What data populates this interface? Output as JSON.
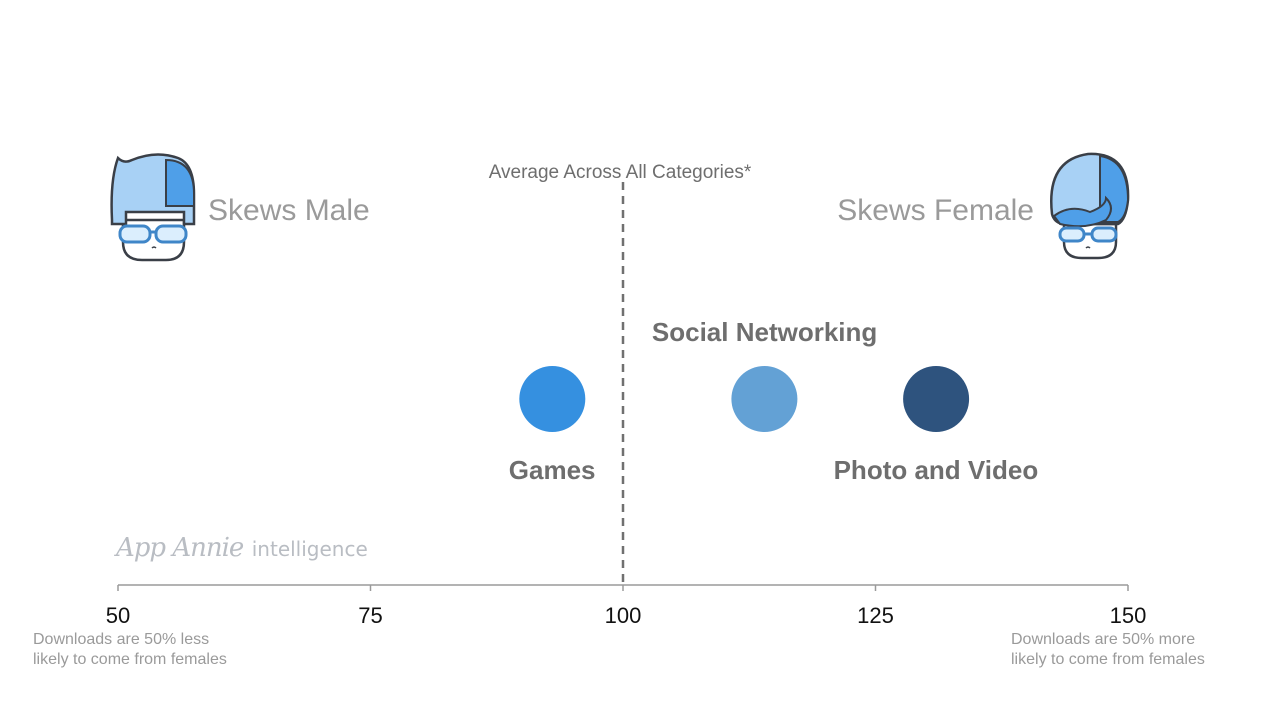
{
  "chart_data": {
    "type": "scatter",
    "title": "",
    "xlabel": "",
    "ylabel": "",
    "xlim": [
      50,
      150
    ],
    "ticks": [
      50,
      75,
      100,
      125,
      150
    ],
    "reference_line": {
      "x": 100,
      "label": "Average Across All Categories*"
    },
    "grid": false,
    "points": [
      {
        "label": "Games",
        "x": 93,
        "color": "#3590e0",
        "label_position": "below"
      },
      {
        "label": "Social Networking",
        "x": 114,
        "color": "#63a1d5",
        "label_position": "above"
      },
      {
        "label": "Photo and Video",
        "x": 131,
        "color": "#2e537e",
        "label_position": "below"
      }
    ]
  },
  "annotations": {
    "skews_male": "Skews Male",
    "skews_female": "Skews Female",
    "left_note": [
      "Downloads are 50% less",
      "likely to come from females"
    ],
    "right_note": [
      "Downloads are 50% more",
      "likely to come from females"
    ]
  },
  "brand": {
    "name": "App Annie",
    "suffix": "intelligence"
  },
  "icons": {
    "male": "male-avatar-icon",
    "female": "female-avatar-icon"
  }
}
